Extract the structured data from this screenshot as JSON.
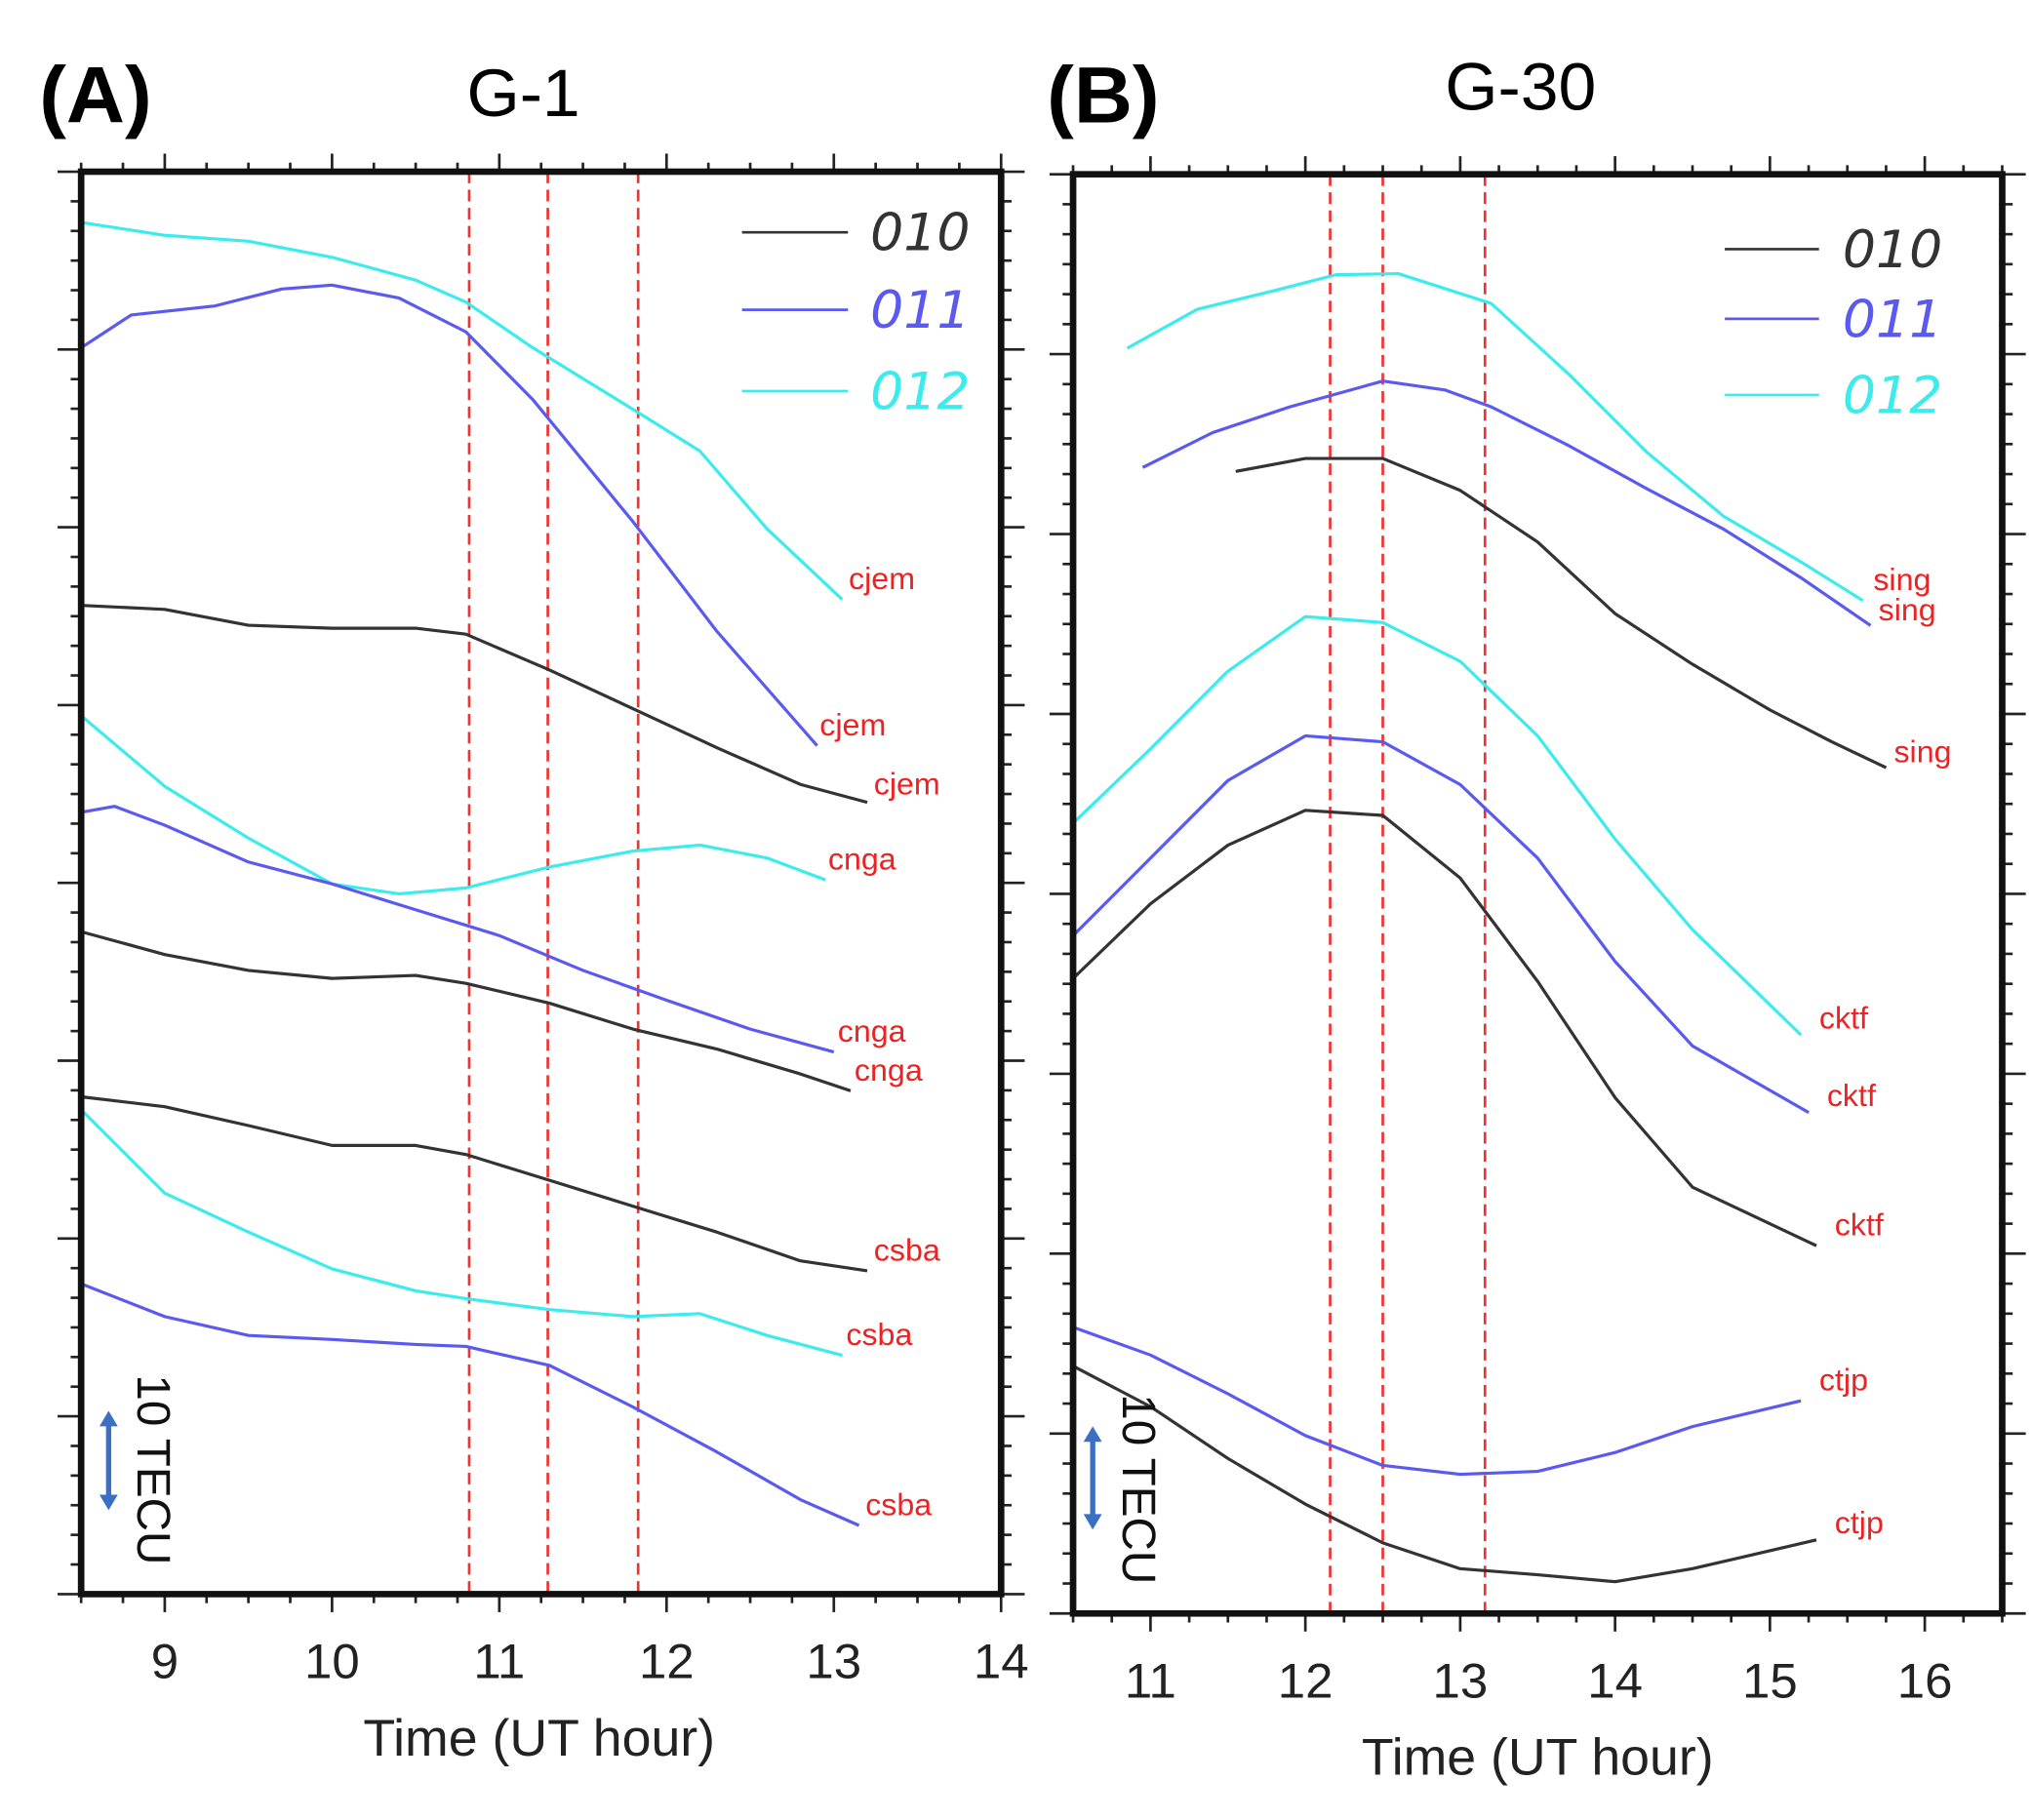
{
  "chart_data": [
    {
      "type": "line",
      "panel_label": "(A)",
      "title": "G-1",
      "xlabel": "Time (UT hour)",
      "ylabel": "",
      "xlim": [
        8.5,
        14
      ],
      "ylim": [
        0,
        143
      ],
      "xticks": [
        9,
        10,
        11,
        12,
        13,
        14
      ],
      "scale_bar": "10 TECU",
      "vlines": [
        10.82,
        11.29,
        11.83
      ],
      "legend": {
        "placement": "top-right",
        "entries": [
          {
            "name": "010",
            "color": "#333333"
          },
          {
            "name": "011",
            "color": "#5a5af0"
          },
          {
            "name": "012",
            "color": "#3cecec"
          }
        ]
      },
      "series": [
        {
          "day": "012",
          "label": "cjem",
          "color": "#3cecec",
          "points": [
            [
              8.5,
              137.9
            ],
            [
              9,
              136.6
            ],
            [
              9.5,
              136.0
            ],
            [
              10,
              134.4
            ],
            [
              10.5,
              132.1
            ],
            [
              10.8,
              129.9
            ],
            [
              11.2,
              125.3
            ],
            [
              11.8,
              119.1
            ],
            [
              12.2,
              114.9
            ],
            [
              12.6,
              107.1
            ],
            [
              13.05,
              100.0
            ]
          ]
        },
        {
          "day": "011",
          "label": "cjem",
          "color": "#5a5af0",
          "points": [
            [
              8.5,
              125.3
            ],
            [
              8.8,
              128.6
            ],
            [
              9.3,
              129.5
            ],
            [
              9.7,
              131.2
            ],
            [
              10,
              131.6
            ],
            [
              10.4,
              130.3
            ],
            [
              10.8,
              126.9
            ],
            [
              11.2,
              120.1
            ],
            [
              11.8,
              107.8
            ],
            [
              12.3,
              96.8
            ],
            [
              12.9,
              85.3
            ]
          ]
        },
        {
          "day": "010",
          "label": "cjem",
          "color": "#333333",
          "points": [
            [
              8.5,
              99.4
            ],
            [
              9,
              99.0
            ],
            [
              9.5,
              97.4
            ],
            [
              10,
              97.1
            ],
            [
              10.5,
              97.1
            ],
            [
              10.8,
              96.5
            ],
            [
              11.3,
              92.9
            ],
            [
              11.8,
              89.0
            ],
            [
              12.3,
              85.1
            ],
            [
              12.8,
              81.4
            ],
            [
              13.2,
              79.6
            ]
          ]
        },
        {
          "day": "012",
          "label": "cnga",
          "color": "#3cecec",
          "points": [
            [
              8.5,
              88.3
            ],
            [
              9,
              81.2
            ],
            [
              9.5,
              76.0
            ],
            [
              10,
              71.4
            ],
            [
              10.4,
              70.4
            ],
            [
              10.8,
              71.0
            ],
            [
              11.3,
              73.1
            ],
            [
              11.8,
              74.7
            ],
            [
              12.2,
              75.3
            ],
            [
              12.6,
              74.0
            ],
            [
              12.95,
              71.8
            ]
          ]
        },
        {
          "day": "011",
          "label": "cnga",
          "color": "#5a5af0",
          "points": [
            [
              8.5,
              78.6
            ],
            [
              8.7,
              79.2
            ],
            [
              9,
              77.3
            ],
            [
              9.5,
              73.6
            ],
            [
              10,
              71.4
            ],
            [
              10.5,
              68.8
            ],
            [
              11,
              66.2
            ],
            [
              11.5,
              62.7
            ],
            [
              12,
              59.7
            ],
            [
              12.5,
              56.8
            ],
            [
              13,
              54.5
            ]
          ]
        },
        {
          "day": "010",
          "label": "cnga",
          "color": "#333333",
          "points": [
            [
              8.5,
              66.6
            ],
            [
              9,
              64.3
            ],
            [
              9.5,
              62.7
            ],
            [
              10,
              61.9
            ],
            [
              10.5,
              62.2
            ],
            [
              10.8,
              61.4
            ],
            [
              11.3,
              59.4
            ],
            [
              11.8,
              56.8
            ],
            [
              12.3,
              54.8
            ],
            [
              12.8,
              52.3
            ],
            [
              13.1,
              50.6
            ]
          ]
        },
        {
          "day": "010",
          "label": "csba",
          "color": "#333333",
          "points": [
            [
              8.5,
              50.0
            ],
            [
              9,
              49.0
            ],
            [
              9.5,
              47.1
            ],
            [
              10,
              45.1
            ],
            [
              10.5,
              45.1
            ],
            [
              10.8,
              44.2
            ],
            [
              11.3,
              41.6
            ],
            [
              11.8,
              39.0
            ],
            [
              12.3,
              36.4
            ],
            [
              12.8,
              33.5
            ],
            [
              13.2,
              32.5
            ]
          ]
        },
        {
          "day": "012",
          "label": "csba",
          "color": "#3cecec",
          "points": [
            [
              8.5,
              48.7
            ],
            [
              9,
              40.3
            ],
            [
              9.5,
              36.4
            ],
            [
              10,
              32.7
            ],
            [
              10.5,
              30.5
            ],
            [
              10.8,
              29.7
            ],
            [
              11.3,
              28.6
            ],
            [
              11.8,
              27.9
            ],
            [
              12.2,
              28.2
            ],
            [
              12.6,
              26.0
            ],
            [
              13.05,
              24.0
            ]
          ]
        },
        {
          "day": "011",
          "label": "csba",
          "color": "#5a5af0",
          "points": [
            [
              8.5,
              31.2
            ],
            [
              9,
              27.9
            ],
            [
              9.5,
              26.0
            ],
            [
              10,
              25.6
            ],
            [
              10.5,
              25.1
            ],
            [
              10.8,
              24.9
            ],
            [
              11.3,
              23.0
            ],
            [
              11.8,
              18.8
            ],
            [
              12.3,
              14.3
            ],
            [
              12.8,
              9.5
            ],
            [
              13.15,
              6.9
            ]
          ]
        }
      ]
    },
    {
      "type": "line",
      "panel_label": "(B)",
      "title": "G-30",
      "xlabel": "Time (UT hour)",
      "ylabel": "",
      "xlim": [
        10.5,
        16.5
      ],
      "ylim": [
        0,
        144.8
      ],
      "xticks": [
        11,
        12,
        13,
        14,
        15,
        16
      ],
      "scale_bar": "10 TECU",
      "vlines": [
        12.16,
        12.5,
        13.16
      ],
      "legend": {
        "placement": "top-right",
        "entries": [
          {
            "name": "010",
            "color": "#333333"
          },
          {
            "name": "011",
            "color": "#5a5af0"
          },
          {
            "name": "012",
            "color": "#3cecec"
          }
        ]
      },
      "series": [
        {
          "day": "012",
          "label": "sing",
          "color": "#3cecec",
          "points": [
            [
              10.85,
              127.3
            ],
            [
              11.3,
              131.2
            ],
            [
              11.8,
              133.1
            ],
            [
              12.2,
              134.7
            ],
            [
              12.6,
              134.8
            ],
            [
              13.2,
              131.8
            ],
            [
              13.7,
              124.7
            ],
            [
              14.2,
              116.9
            ],
            [
              14.7,
              110.4
            ],
            [
              15.2,
              105.8
            ],
            [
              15.6,
              101.9
            ]
          ]
        },
        {
          "day": "011",
          "label": "sing",
          "color": "#5a5af0",
          "points": [
            [
              10.95,
              115.3
            ],
            [
              11.4,
              118.8
            ],
            [
              11.9,
              121.4
            ],
            [
              12.5,
              124.0
            ],
            [
              12.9,
              123.1
            ],
            [
              13.2,
              121.4
            ],
            [
              13.7,
              117.5
            ],
            [
              14.2,
              113.2
            ],
            [
              14.7,
              109.1
            ],
            [
              15.2,
              104.2
            ],
            [
              15.65,
              99.4
            ]
          ]
        },
        {
          "day": "010",
          "label": "sing",
          "color": "#333333",
          "points": [
            [
              11.55,
              114.9
            ],
            [
              12,
              116.2
            ],
            [
              12.5,
              116.2
            ],
            [
              13,
              113.0
            ],
            [
              13.5,
              107.8
            ],
            [
              14,
              100.6
            ],
            [
              14.5,
              95.5
            ],
            [
              15,
              90.9
            ],
            [
              15.4,
              87.7
            ],
            [
              15.75,
              85.1
            ]
          ]
        },
        {
          "day": "012",
          "label": "cktf",
          "color": "#3cecec",
          "points": [
            [
              10.5,
              79.5
            ],
            [
              11,
              87.0
            ],
            [
              11.5,
              94.8
            ],
            [
              12,
              100.3
            ],
            [
              12.5,
              99.7
            ],
            [
              13,
              95.8
            ],
            [
              13.5,
              88.3
            ],
            [
              14,
              77.9
            ],
            [
              14.5,
              68.8
            ],
            [
              15.2,
              58.2
            ]
          ]
        },
        {
          "day": "011",
          "label": "cktf",
          "color": "#5a5af0",
          "points": [
            [
              10.5,
              68.2
            ],
            [
              11,
              76.0
            ],
            [
              11.5,
              83.8
            ],
            [
              12,
              88.3
            ],
            [
              12.5,
              87.7
            ],
            [
              13,
              83.4
            ],
            [
              13.5,
              76.0
            ],
            [
              14,
              65.6
            ],
            [
              14.5,
              57.1
            ],
            [
              15.25,
              50.4
            ]
          ]
        },
        {
          "day": "010",
          "label": "cktf",
          "color": "#333333",
          "points": [
            [
              10.5,
              63.9
            ],
            [
              11,
              71.4
            ],
            [
              11.5,
              77.3
            ],
            [
              12,
              80.8
            ],
            [
              12.5,
              80.3
            ],
            [
              13,
              74.0
            ],
            [
              13.5,
              63.6
            ],
            [
              14,
              51.9
            ],
            [
              14.5,
              42.9
            ],
            [
              15.3,
              37.0
            ]
          ]
        },
        {
          "day": "011",
          "label": "ctjp",
          "color": "#5a5af0",
          "points": [
            [
              10.5,
              28.8
            ],
            [
              11,
              26.0
            ],
            [
              11.5,
              22.1
            ],
            [
              12,
              17.9
            ],
            [
              12.5,
              14.9
            ],
            [
              13,
              14.0
            ],
            [
              13.5,
              14.3
            ],
            [
              14,
              16.2
            ],
            [
              14.5,
              18.8
            ],
            [
              15.2,
              21.4
            ]
          ]
        },
        {
          "day": "010",
          "label": "ctjp",
          "color": "#333333",
          "points": [
            [
              10.5,
              24.9
            ],
            [
              11,
              20.8
            ],
            [
              11.5,
              15.6
            ],
            [
              12,
              11.0
            ],
            [
              12.5,
              7.1
            ],
            [
              13,
              4.5
            ],
            [
              13.5,
              3.9
            ],
            [
              14,
              3.2
            ],
            [
              14.5,
              4.5
            ],
            [
              15.3,
              7.4
            ]
          ]
        }
      ]
    }
  ]
}
